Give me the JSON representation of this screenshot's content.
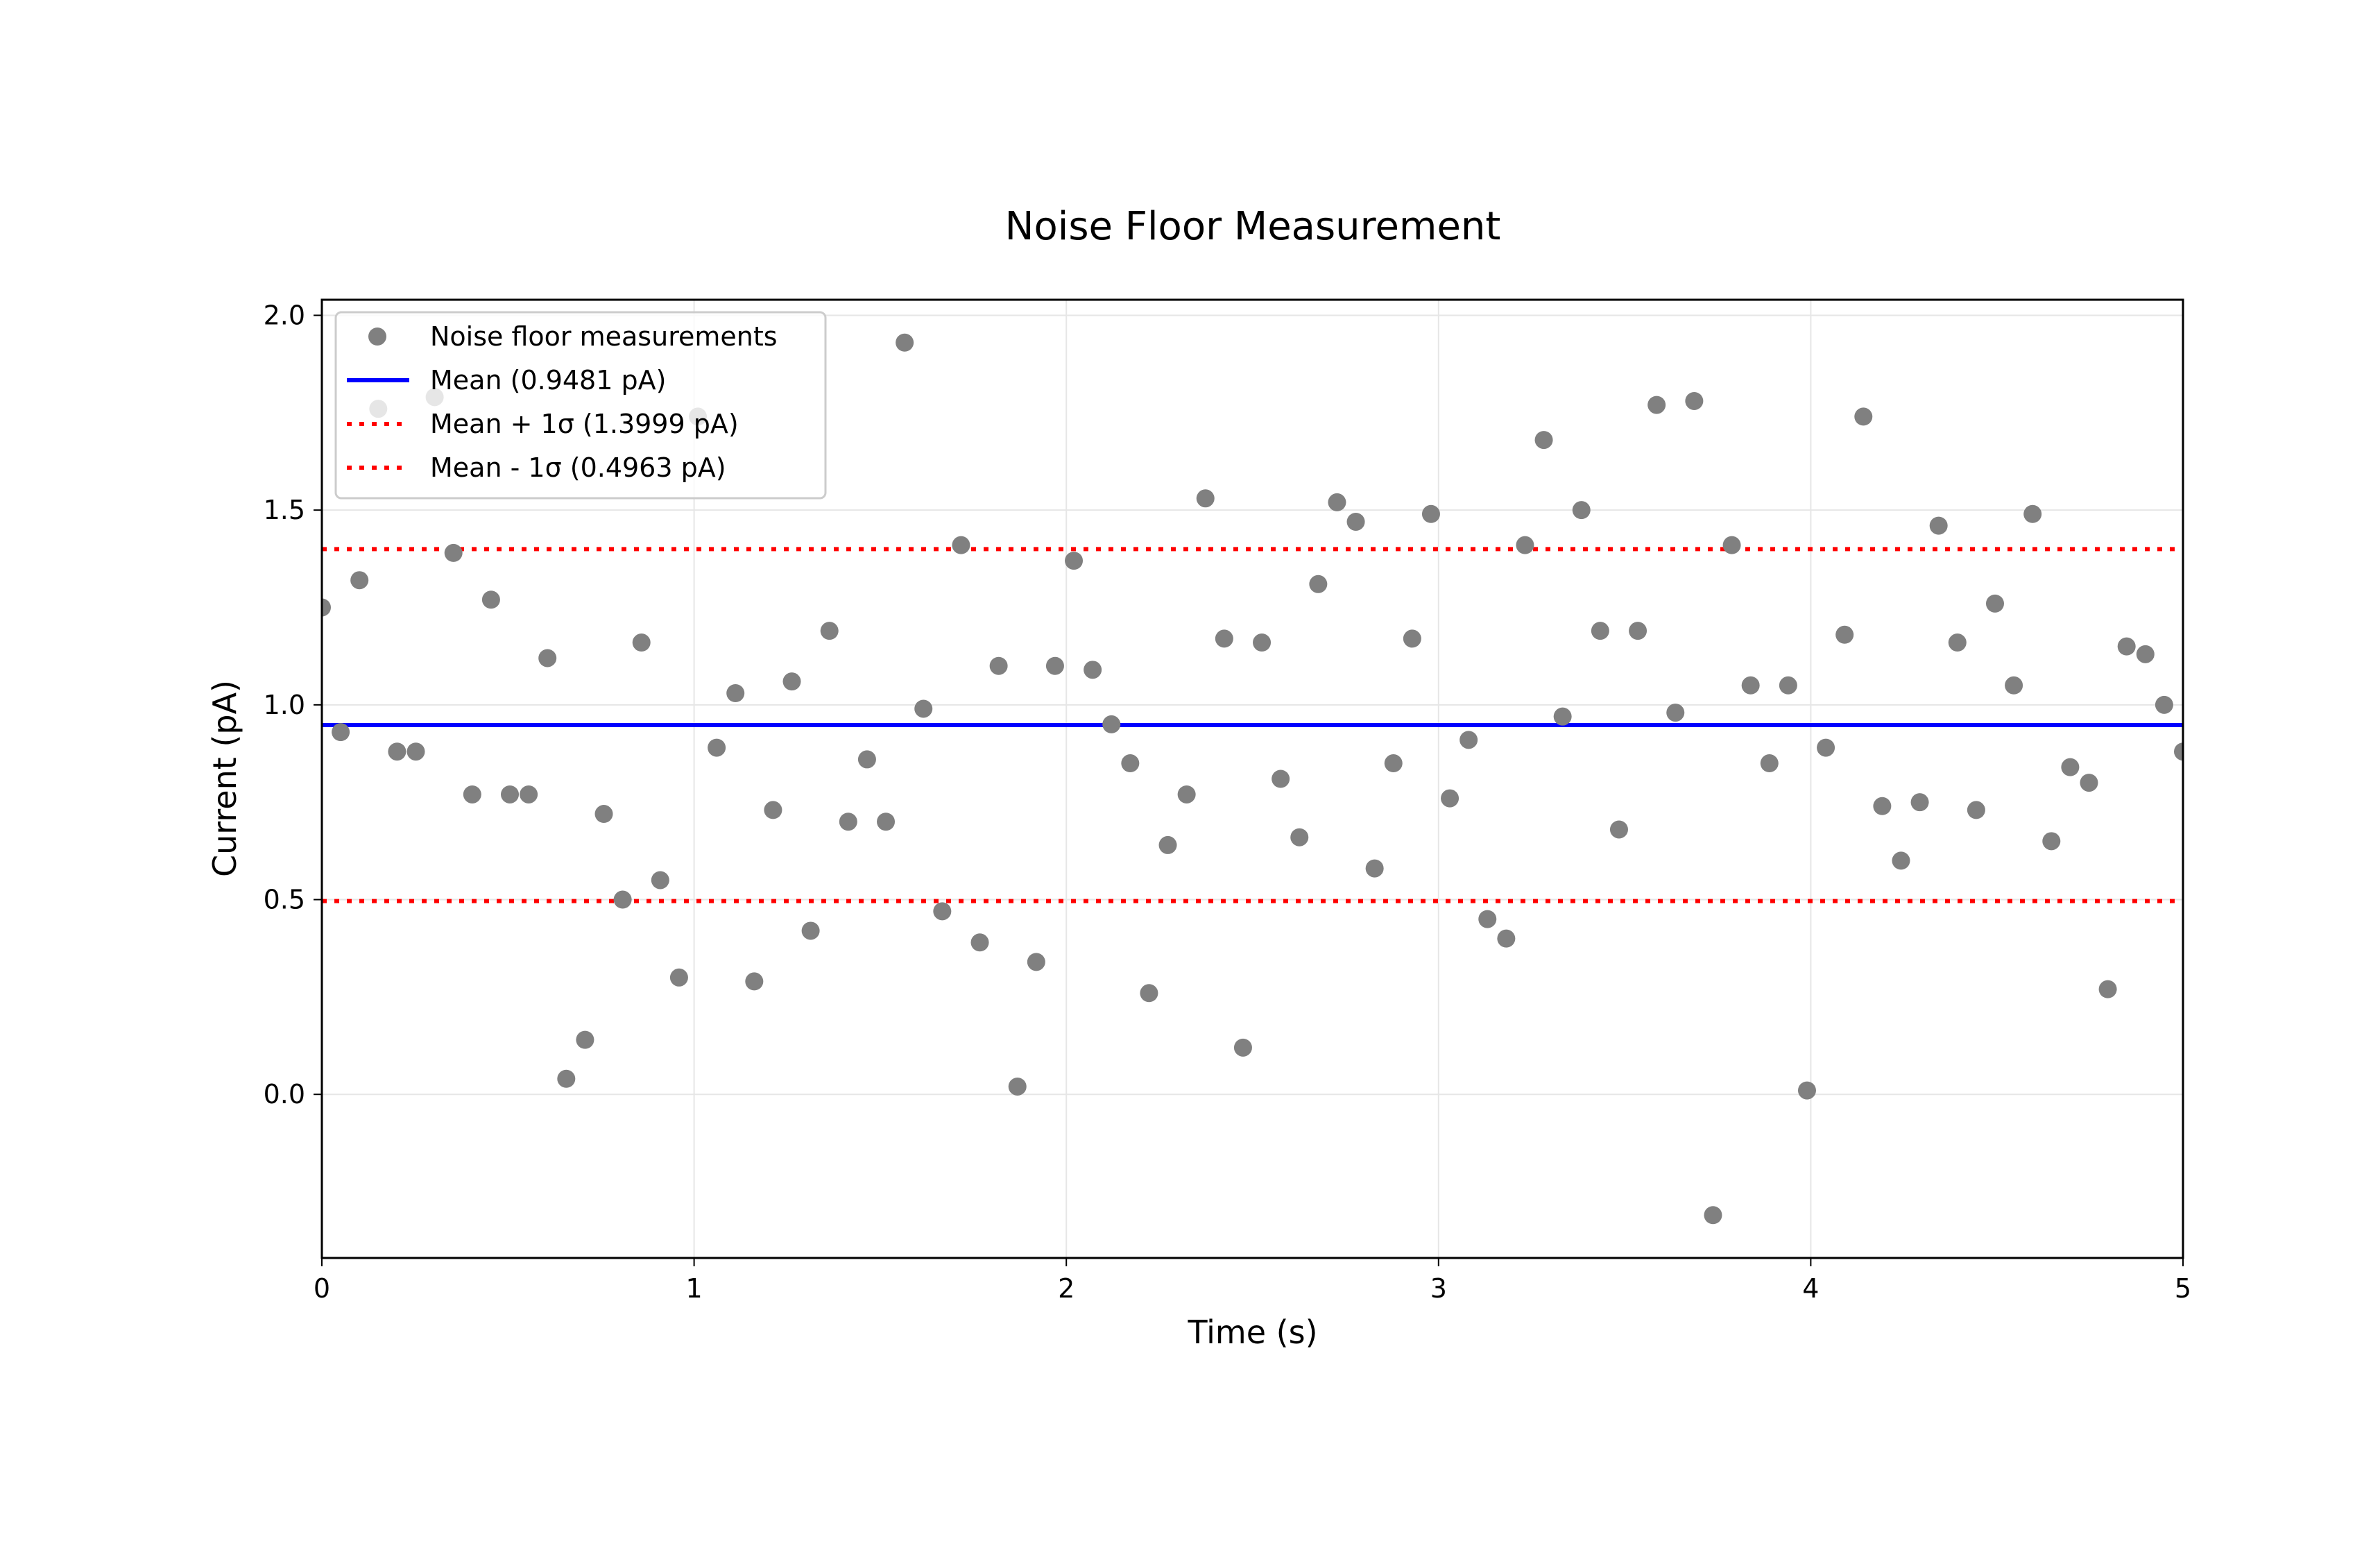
{
  "chart_data": {
    "type": "scatter",
    "title": "Noise Floor Measurement",
    "xlabel": "Time (s)",
    "ylabel": "Current (pA)",
    "xlim": [
      0,
      5
    ],
    "ylim": [
      -0.42,
      2.04
    ],
    "xticks": [
      0,
      1,
      2,
      3,
      4,
      5
    ],
    "xtick_labels": [
      "0",
      "1",
      "2",
      "3",
      "4",
      "5"
    ],
    "yticks": [
      0.0,
      0.5,
      1.0,
      1.5,
      2.0
    ],
    "ytick_labels": [
      "0.0",
      "0.5",
      "1.0",
      "1.5",
      "2.0"
    ],
    "grid": true,
    "legend_position": "upper left",
    "series": [
      {
        "name": "Noise floor measurements",
        "kind": "scatter",
        "color": "#808080",
        "x_start": 0,
        "x_end": 5,
        "count": 100,
        "values": [
          1.25,
          0.93,
          1.32,
          1.76,
          0.88,
          0.88,
          1.79,
          1.39,
          0.77,
          1.27,
          0.77,
          0.77,
          1.12,
          0.04,
          0.14,
          0.72,
          0.5,
          1.16,
          0.55,
          0.3,
          1.74,
          0.89,
          1.03,
          0.29,
          0.73,
          1.06,
          0.42,
          1.19,
          0.7,
          0.86,
          0.7,
          1.93,
          0.99,
          0.47,
          1.41,
          0.39,
          1.1,
          0.02,
          0.34,
          1.1,
          1.37,
          1.09,
          0.95,
          0.85,
          0.26,
          0.64,
          0.77,
          1.53,
          1.17,
          0.12,
          1.16,
          0.81,
          0.66,
          1.31,
          1.52,
          1.47,
          0.58,
          0.85,
          1.17,
          1.49,
          0.76,
          0.91,
          0.45,
          0.4,
          1.41,
          1.68,
          0.97,
          1.5,
          1.19,
          0.68,
          1.19,
          1.77,
          0.98,
          1.78,
          -0.31,
          1.41,
          1.05,
          0.85,
          1.05,
          0.01,
          0.89,
          1.18,
          1.74,
          0.74,
          0.6,
          0.75,
          1.46,
          1.16,
          0.73,
          1.26,
          1.05,
          1.49,
          0.65,
          0.84,
          0.8,
          0.27,
          1.15,
          1.13,
          1.0,
          0.88
        ]
      },
      {
        "name": "Mean (0.9481 pA)",
        "kind": "hline",
        "y": 0.9481,
        "color": "#0000ff",
        "style": "solid"
      },
      {
        "name": "Mean + 1σ (1.3999 pA)",
        "kind": "hline",
        "y": 1.3999,
        "color": "#ff0000",
        "style": "dotted"
      },
      {
        "name": "Mean - 1σ (0.4963 pA)",
        "kind": "hline",
        "y": 0.4963,
        "color": "#ff0000",
        "style": "dotted"
      }
    ]
  },
  "legend": {
    "items": [
      {
        "label": "Noise floor measurements",
        "marker": "dot",
        "color": "#808080"
      },
      {
        "label": "Mean (0.9481 pA)",
        "marker": "solid-line",
        "color": "#0000ff"
      },
      {
        "label": "Mean + 1σ (1.3999 pA)",
        "marker": "dotted-line",
        "color": "#ff0000"
      },
      {
        "label": "Mean - 1σ (0.4963 pA)",
        "marker": "dotted-line",
        "color": "#ff0000"
      }
    ]
  }
}
